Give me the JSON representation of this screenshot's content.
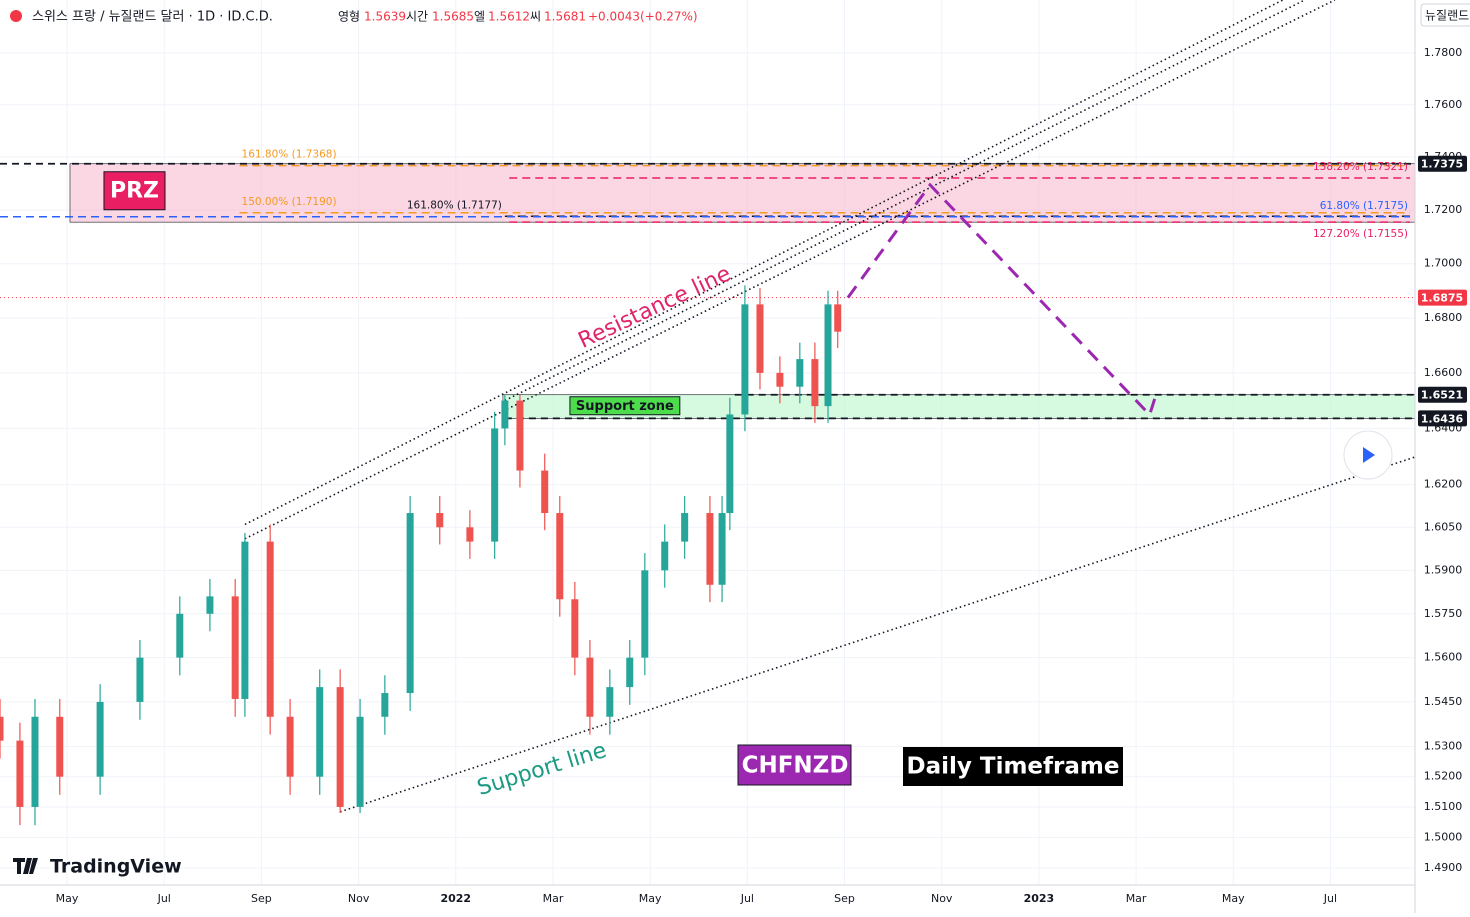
{
  "chart_data": {
    "type": "candlestick",
    "header": {
      "symbol": "스위스 프랑 / 뉴질랜드 달러 · 1D · ID.C.D.",
      "ohlc": [
        {
          "label": "영형",
          "value": 1.5639
        },
        {
          "label": "시간",
          "value": 1.5685
        },
        {
          "label": "엘",
          "value": 1.5612
        },
        {
          "label": "씨",
          "value": 1.5681
        }
      ],
      "change": "+0.0043(+0.27%)",
      "currency": "뉴질랜드"
    },
    "log": true,
    "grid": true,
    "up_color": "#26a69a",
    "down_color": "#ef5350",
    "xlim": [
      3.62,
      32.74
    ],
    "ylim": [
      1.4845,
      1.8007
    ],
    "xticks": [
      {
        "value": 5,
        "label": "May"
      },
      {
        "value": 7,
        "label": "Jul"
      },
      {
        "value": 9,
        "label": "Sep"
      },
      {
        "value": 11,
        "label": "Nov"
      },
      {
        "value": 13,
        "label": "2022"
      },
      {
        "value": 15,
        "label": "Mar"
      },
      {
        "value": 17,
        "label": "May"
      },
      {
        "value": 19,
        "label": "Jul"
      },
      {
        "value": 21,
        "label": "Sep"
      },
      {
        "value": 23,
        "label": "Nov"
      },
      {
        "value": 25,
        "label": "2023"
      },
      {
        "value": 27,
        "label": "Mar"
      },
      {
        "value": 29,
        "label": "May"
      },
      {
        "value": 31,
        "label": "Jul"
      }
    ],
    "yticks": [
      {
        "value": 1.78,
        "label": "1.7800"
      },
      {
        "value": 1.76,
        "label": "1.7600"
      },
      {
        "value": 1.74,
        "label": "1.7400"
      },
      {
        "value": 1.72,
        "label": "1.7200"
      },
      {
        "value": 1.7,
        "label": "1.7000"
      },
      {
        "value": 1.68,
        "label": "1.6800"
      },
      {
        "value": 1.66,
        "label": "1.6600"
      },
      {
        "value": 1.64,
        "label": "1.6400"
      },
      {
        "value": 1.62,
        "label": "1.6200"
      },
      {
        "value": 1.605,
        "label": "1.6050"
      },
      {
        "value": 1.59,
        "label": "1.5900"
      },
      {
        "value": 1.575,
        "label": "1.5750"
      },
      {
        "value": 1.56,
        "label": "1.5600"
      },
      {
        "value": 1.545,
        "label": "1.5450"
      },
      {
        "value": 1.53,
        "label": "1.5300"
      },
      {
        "value": 1.52,
        "label": "1.5200"
      },
      {
        "value": 1.51,
        "label": "1.5100"
      },
      {
        "value": 1.5,
        "label": "1.5000"
      },
      {
        "value": 1.49,
        "label": "1.4900"
      }
    ],
    "x": [
      3.62,
      4.03,
      4.34,
      4.85,
      5.68,
      6.5,
      7.32,
      7.94,
      8.46,
      8.66,
      9.18,
      9.59,
      10.2,
      10.62,
      11.03,
      11.54,
      12.06,
      12.67,
      13.29,
      13.8,
      14.01,
      14.32,
      14.83,
      15.14,
      15.45,
      15.76,
      16.17,
      16.58,
      16.89,
      17.3,
      17.71,
      18.23,
      18.48,
      18.64,
      18.95,
      19.26,
      19.67,
      20.08,
      20.39,
      20.66,
      20.86
    ],
    "open": [
      1.54,
      1.532,
      1.51,
      1.54,
      1.52,
      1.545,
      1.56,
      1.575,
      1.581,
      1.546,
      1.6,
      1.54,
      1.52,
      1.55,
      1.51,
      1.54,
      1.548,
      1.61,
      1.605,
      1.6,
      1.64,
      1.65,
      1.625,
      1.61,
      1.58,
      1.56,
      1.54,
      1.55,
      1.56,
      1.59,
      1.6,
      1.61,
      1.585,
      1.61,
      1.645,
      1.685,
      1.66,
      1.655,
      1.665,
      1.648,
      1.685
    ],
    "high": [
      1.546,
      1.538,
      1.546,
      1.546,
      1.551,
      1.566,
      1.581,
      1.587,
      1.587,
      1.603,
      1.606,
      1.546,
      1.556,
      1.556,
      1.546,
      1.554,
      1.616,
      1.616,
      1.611,
      1.646,
      1.652,
      1.652,
      1.631,
      1.616,
      1.586,
      1.566,
      1.556,
      1.566,
      1.596,
      1.606,
      1.616,
      1.616,
      1.616,
      1.651,
      1.692,
      1.691,
      1.666,
      1.671,
      1.671,
      1.69,
      1.69
    ],
    "low": [
      1.526,
      1.504,
      1.504,
      1.514,
      1.514,
      1.539,
      1.554,
      1.569,
      1.54,
      1.54,
      1.534,
      1.514,
      1.514,
      1.508,
      1.508,
      1.534,
      1.542,
      1.599,
      1.594,
      1.594,
      1.634,
      1.619,
      1.604,
      1.574,
      1.554,
      1.534,
      1.534,
      1.544,
      1.554,
      1.584,
      1.594,
      1.579,
      1.579,
      1.604,
      1.639,
      1.654,
      1.649,
      1.649,
      1.642,
      1.642,
      1.669
    ],
    "close": [
      1.532,
      1.51,
      1.54,
      1.52,
      1.545,
      1.56,
      1.575,
      1.581,
      1.546,
      1.6,
      1.54,
      1.52,
      1.55,
      1.51,
      1.54,
      1.548,
      1.61,
      1.605,
      1.6,
      1.64,
      1.65,
      1.625,
      1.61,
      1.58,
      1.56,
      1.54,
      1.55,
      1.56,
      1.59,
      1.6,
      1.61,
      1.585,
      1.61,
      1.645,
      1.685,
      1.66,
      1.655,
      1.665,
      1.648,
      1.685,
      1.675
    ],
    "zones": [
      {
        "name": "PRZ",
        "low": 1.7155,
        "high": 1.7375,
        "start": 5.06,
        "color": "#f8bbd0",
        "label_color": "#e91e63"
      },
      {
        "name": "Support zone",
        "low": 1.6436,
        "high": 1.6521,
        "start": 13.97,
        "color": "#b9f6ca",
        "label_color": "#4cdc4c"
      }
    ],
    "levels": [
      {
        "value": 1.7375,
        "start": 3.62,
        "color": "#131722"
      },
      {
        "value": 1.6875,
        "start": 3.62,
        "color": "#f23645"
      },
      {
        "value": 1.6521,
        "start": 18.74,
        "color": "#131722"
      },
      {
        "value": 1.6436,
        "start": 14.01,
        "color": "#131722"
      }
    ],
    "fibs": [
      {
        "text": "161.80% (1.7368)",
        "value": 1.7368,
        "start": 8.55,
        "color": "#f59a23",
        "align": "left"
      },
      {
        "text": "150.00% (1.7190)",
        "value": 1.719,
        "start": 8.55,
        "color": "#f59a23",
        "align": "left"
      },
      {
        "text": "161.80% (1.7177)",
        "value": 1.7177,
        "start": 14.01,
        "color": "#131722",
        "align": "before"
      },
      {
        "text": "138.20% (1.7321)",
        "value": 1.7321,
        "start": 14.1,
        "color": "#e91e63",
        "align": "right"
      },
      {
        "text": "61.80% (1.7175)",
        "value": 1.7175,
        "start": 3.62,
        "color": "#2962ff",
        "align": "right"
      },
      {
        "text": "127.20% (1.7155)",
        "value": 1.7155,
        "start": 14.1,
        "color": "#e91e63",
        "align": "below"
      }
    ],
    "trendlines": [
      {
        "points": [
          [
            8.66,
            1.606
          ],
          [
            30.02,
            1.8007
          ]
        ]
      },
      {
        "points": [
          [
            8.66,
            1.601
          ],
          [
            31.09,
            1.8007
          ]
        ]
      },
      {
        "points": [
          [
            14.01,
            1.65
          ],
          [
            30.47,
            1.8007
          ]
        ]
      },
      {
        "points": [
          [
            10.62,
            1.5084
          ],
          [
            32.74,
            1.6298
          ]
        ]
      }
    ],
    "projection": {
      "color": "#9c27b0",
      "x": [
        21.07,
        22.76,
        27.28,
        27.39
      ],
      "values": [
        1.6875,
        1.7295,
        1.6449,
        1.651
      ]
    },
    "annotations": {
      "resistance": "Resistance line",
      "support": "Support line",
      "symbol": "CHFNZD",
      "timeframe": "Daily Timeframe",
      "brand": "TradingView"
    }
  }
}
